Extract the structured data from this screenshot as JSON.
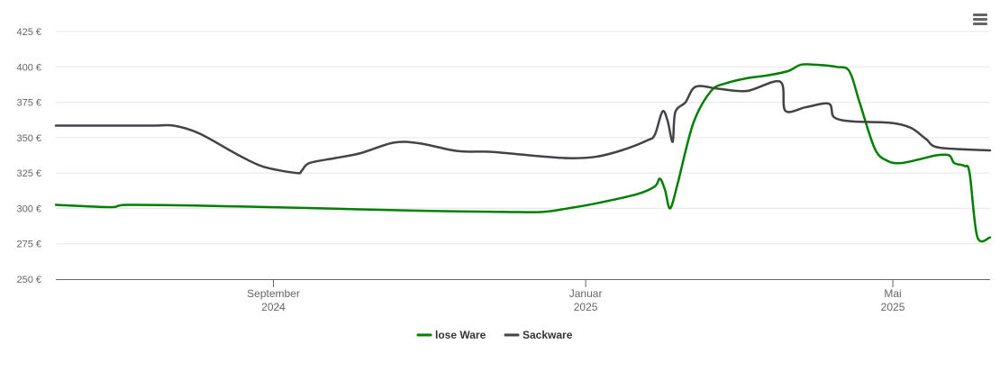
{
  "chart_data": {
    "type": "line",
    "title": "",
    "xlabel": "",
    "ylabel": "",
    "ylim": [
      250,
      425
    ],
    "y_ticks": [
      {
        "value": 250,
        "label": "250 €"
      },
      {
        "value": 275,
        "label": "275 €"
      },
      {
        "value": 300,
        "label": "300 €"
      },
      {
        "value": 325,
        "label": "325 €"
      },
      {
        "value": 350,
        "label": "350 €"
      },
      {
        "value": 375,
        "label": "375 €"
      },
      {
        "value": 400,
        "label": "400 €"
      },
      {
        "value": 425,
        "label": "425 €"
      }
    ],
    "xlim": [
      "2024-06-08",
      "2025-06-08"
    ],
    "x_ticks": [
      {
        "date": "2024-09-01",
        "month": "September",
        "year": "2024"
      },
      {
        "date": "2025-01-01",
        "month": "Januar",
        "year": "2025"
      },
      {
        "date": "2025-05-01",
        "month": "Mai",
        "year": "2025"
      }
    ],
    "grid": true,
    "legend": "bottom-center",
    "series": [
      {
        "name": "lose Ware",
        "color": "#007f00",
        "points": [
          [
            "2024-06-08",
            302.5
          ],
          [
            "2024-06-26",
            301.0
          ],
          [
            "2024-07-01",
            301.0
          ],
          [
            "2024-07-06",
            302.5
          ],
          [
            "2024-08-01",
            302.0
          ],
          [
            "2024-09-01",
            300.8
          ],
          [
            "2024-10-01",
            299.5
          ],
          [
            "2024-11-01",
            298.2
          ],
          [
            "2024-12-01",
            297.5
          ],
          [
            "2024-12-15",
            297.5
          ],
          [
            "2024-12-25",
            300.0
          ],
          [
            "2025-01-05",
            303.5
          ],
          [
            "2025-01-21",
            310.0
          ],
          [
            "2025-01-28",
            315.5
          ],
          [
            "2025-01-30",
            321.0
          ],
          [
            "2025-02-01",
            313.0
          ],
          [
            "2025-02-03",
            300.0
          ],
          [
            "2025-02-06",
            318.0
          ],
          [
            "2025-02-12",
            360.0
          ],
          [
            "2025-02-19",
            383.0
          ],
          [
            "2025-02-25",
            388.5
          ],
          [
            "2025-03-05",
            392.0
          ],
          [
            "2025-03-13",
            394.0
          ],
          [
            "2025-03-21",
            397.0
          ],
          [
            "2025-03-26",
            401.5
          ],
          [
            "2025-04-01",
            401.5
          ],
          [
            "2025-04-09",
            400.0
          ],
          [
            "2025-04-14",
            397.0
          ],
          [
            "2025-04-18",
            375.0
          ],
          [
            "2025-04-24",
            342.0
          ],
          [
            "2025-04-29",
            333.5
          ],
          [
            "2025-05-04",
            332.0
          ],
          [
            "2025-05-11",
            334.5
          ],
          [
            "2025-05-18",
            337.5
          ],
          [
            "2025-05-23",
            337.5
          ],
          [
            "2025-05-25",
            332.0
          ],
          [
            "2025-05-29",
            330.0
          ],
          [
            "2025-05-31",
            325.0
          ],
          [
            "2025-06-03",
            280.0
          ],
          [
            "2025-06-08",
            279.5
          ]
        ]
      },
      {
        "name": "Sackware",
        "color": "#434348",
        "points": [
          [
            "2024-06-08",
            358.5
          ],
          [
            "2024-07-15",
            358.5
          ],
          [
            "2024-07-24",
            358.5
          ],
          [
            "2024-08-03",
            353.0
          ],
          [
            "2024-08-18",
            338.0
          ],
          [
            "2024-08-28",
            329.5
          ],
          [
            "2024-09-10",
            325.0
          ],
          [
            "2024-09-12",
            326.5
          ],
          [
            "2024-09-15",
            332.0
          ],
          [
            "2024-09-25",
            335.5
          ],
          [
            "2024-10-05",
            339.0
          ],
          [
            "2024-10-18",
            346.5
          ],
          [
            "2024-10-28",
            346.0
          ],
          [
            "2024-11-12",
            340.5
          ],
          [
            "2024-11-25",
            340.0
          ],
          [
            "2024-12-10",
            337.5
          ],
          [
            "2024-12-25",
            335.5
          ],
          [
            "2025-01-05",
            336.5
          ],
          [
            "2025-01-15",
            341.0
          ],
          [
            "2025-01-25",
            348.0
          ],
          [
            "2025-01-28",
            352.0
          ],
          [
            "2025-01-31",
            368.5
          ],
          [
            "2025-02-02",
            362.0
          ],
          [
            "2025-02-04",
            347.0
          ],
          [
            "2025-02-05",
            368.0
          ],
          [
            "2025-02-09",
            375.0
          ],
          [
            "2025-02-13",
            386.0
          ],
          [
            "2025-02-22",
            384.5
          ],
          [
            "2025-03-05",
            383.0
          ],
          [
            "2025-03-18",
            389.5
          ],
          [
            "2025-03-20",
            369.0
          ],
          [
            "2025-03-28",
            371.5
          ],
          [
            "2025-04-06",
            374.0
          ],
          [
            "2025-04-08",
            364.5
          ],
          [
            "2025-04-15",
            361.5
          ],
          [
            "2025-04-30",
            360.5
          ],
          [
            "2025-05-08",
            357.0
          ],
          [
            "2025-05-14",
            349.0
          ],
          [
            "2025-05-19",
            343.0
          ],
          [
            "2025-06-08",
            341.0
          ]
        ]
      }
    ]
  }
}
